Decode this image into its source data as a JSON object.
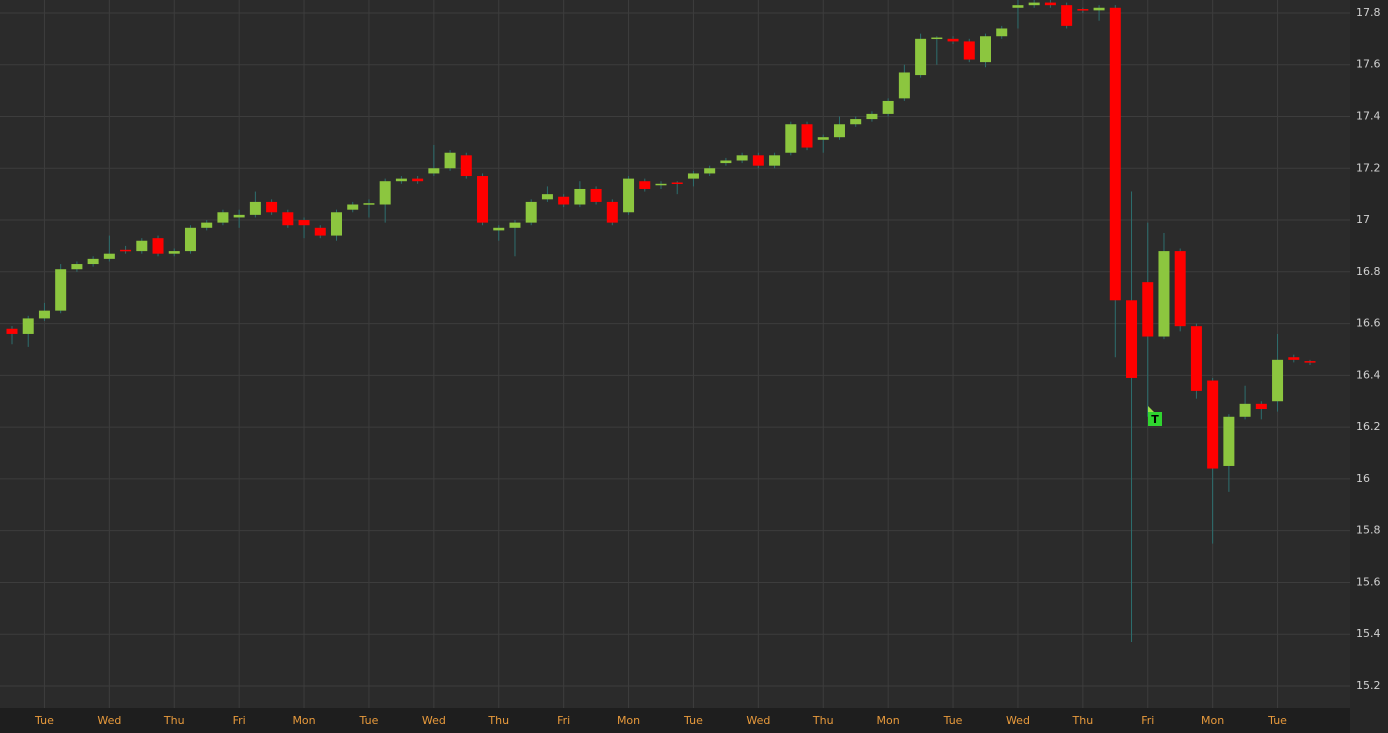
{
  "chart_data": {
    "type": "candlestick",
    "categories": [
      null,
      null,
      "Tue",
      null,
      null,
      null,
      "Wed",
      null,
      null,
      null,
      "Thu",
      null,
      null,
      null,
      "Fri",
      null,
      null,
      null,
      "Mon",
      null,
      null,
      null,
      "Tue",
      null,
      null,
      null,
      "Wed",
      null,
      null,
      null,
      "Thu",
      null,
      null,
      null,
      "Fri",
      null,
      null,
      null,
      "Mon",
      null,
      null,
      null,
      "Tue",
      null,
      null,
      null,
      "Wed",
      null,
      null,
      null,
      "Thu",
      null,
      null,
      null,
      "Mon",
      null,
      null,
      null,
      "Tue",
      null,
      null,
      null,
      "Wed",
      null,
      null,
      null,
      "Thu",
      null,
      null,
      null,
      "Fri",
      null,
      null,
      null,
      "Mon",
      null,
      null,
      null,
      "Tue",
      null,
      null
    ],
    "open": [
      16.58,
      16.56,
      16.62,
      16.65,
      16.81,
      16.83,
      16.85,
      16.885,
      16.88,
      16.93,
      16.87,
      16.88,
      16.97,
      16.99,
      17.01,
      17.02,
      17.07,
      17.03,
      17.0,
      16.97,
      16.94,
      17.04,
      17.06,
      17.06,
      17.15,
      17.16,
      17.18,
      17.2,
      17.25,
      17.17,
      16.96,
      16.97,
      16.99,
      17.08,
      17.09,
      17.06,
      17.12,
      17.07,
      17.03,
      17.15,
      17.135,
      17.145,
      17.16,
      17.18,
      17.22,
      17.23,
      17.25,
      17.21,
      17.26,
      17.37,
      17.31,
      17.32,
      17.37,
      17.39,
      17.41,
      17.47,
      17.56,
      17.7,
      17.7,
      17.69,
      17.61,
      17.71,
      17.82,
      17.83,
      17.84,
      17.83,
      17.815,
      17.81,
      17.82,
      16.69,
      16.76,
      16.55,
      16.88,
      16.59,
      16.38,
      16.05,
      16.24,
      16.29,
      16.3,
      16.47,
      16.455
    ],
    "high": [
      16.59,
      16.63,
      16.68,
      16.83,
      16.84,
      16.86,
      16.94,
      16.9,
      16.93,
      16.94,
      16.89,
      16.98,
      17.0,
      17.04,
      17.04,
      17.11,
      17.08,
      17.04,
      17.01,
      16.98,
      17.04,
      17.07,
      17.08,
      17.16,
      17.17,
      17.17,
      17.29,
      17.27,
      17.26,
      17.18,
      16.98,
      17.0,
      17.08,
      17.13,
      17.1,
      17.15,
      17.13,
      17.08,
      17.17,
      17.16,
      17.15,
      17.15,
      17.19,
      17.21,
      17.24,
      17.26,
      17.26,
      17.26,
      17.38,
      17.38,
      17.33,
      17.4,
      17.4,
      17.42,
      17.47,
      17.6,
      17.72,
      17.71,
      17.71,
      17.7,
      17.72,
      17.75,
      17.85,
      17.85,
      17.85,
      17.84,
      17.82,
      17.83,
      17.83,
      17.11,
      16.99,
      16.95,
      16.89,
      16.6,
      16.39,
      16.25,
      16.36,
      16.3,
      16.56,
      16.48,
      16.46
    ],
    "low": [
      16.52,
      16.51,
      16.61,
      16.64,
      16.8,
      16.82,
      16.84,
      16.87,
      16.87,
      16.86,
      16.86,
      16.87,
      16.96,
      16.98,
      16.97,
      17.01,
      17.02,
      16.97,
      16.93,
      16.93,
      16.92,
      17.03,
      17.01,
      16.99,
      17.14,
      17.14,
      17.17,
      17.19,
      17.16,
      16.98,
      16.92,
      16.86,
      16.98,
      17.07,
      17.05,
      17.05,
      17.06,
      16.98,
      17.02,
      17.11,
      17.12,
      17.1,
      17.13,
      17.17,
      17.21,
      17.22,
      17.2,
      17.2,
      17.25,
      17.27,
      17.26,
      17.31,
      17.36,
      17.38,
      17.4,
      17.46,
      17.55,
      17.6,
      17.68,
      17.61,
      17.59,
      17.7,
      17.74,
      17.82,
      17.82,
      17.74,
      17.8,
      17.77,
      16.47,
      15.37,
      16.24,
      16.54,
      16.57,
      16.31,
      15.75,
      15.95,
      16.23,
      16.23,
      16.26,
      16.45,
      16.44
    ],
    "close": [
      16.56,
      16.62,
      16.65,
      16.81,
      16.83,
      16.85,
      16.87,
      16.88,
      16.92,
      16.87,
      16.88,
      16.97,
      16.99,
      17.03,
      17.02,
      17.07,
      17.03,
      16.98,
      16.98,
      16.94,
      17.03,
      17.06,
      17.065,
      17.15,
      17.16,
      17.15,
      17.2,
      17.26,
      17.17,
      16.99,
      16.97,
      16.99,
      17.07,
      17.1,
      17.06,
      17.12,
      17.07,
      16.99,
      17.16,
      17.12,
      17.14,
      17.14,
      17.18,
      17.2,
      17.23,
      17.25,
      17.21,
      17.25,
      17.37,
      17.28,
      17.32,
      17.37,
      17.39,
      17.41,
      17.46,
      17.57,
      17.7,
      17.705,
      17.69,
      17.62,
      17.71,
      17.74,
      17.83,
      17.84,
      17.83,
      17.75,
      17.81,
      17.82,
      16.69,
      16.39,
      16.55,
      16.88,
      16.59,
      16.34,
      16.04,
      16.24,
      16.29,
      16.27,
      16.46,
      16.46,
      16.45
    ],
    "ylim": [
      15.115,
      17.85
    ],
    "yticks": [
      15.2,
      15.4,
      15.6,
      15.8,
      16,
      16.2,
      16.4,
      16.6,
      16.8,
      17,
      17.2,
      17.4,
      17.6,
      17.8
    ],
    "grid": true,
    "up_color": "#8cc63f",
    "down_color": "#ff0000",
    "wick_color": "#2d6e6e",
    "annotation": "T"
  }
}
